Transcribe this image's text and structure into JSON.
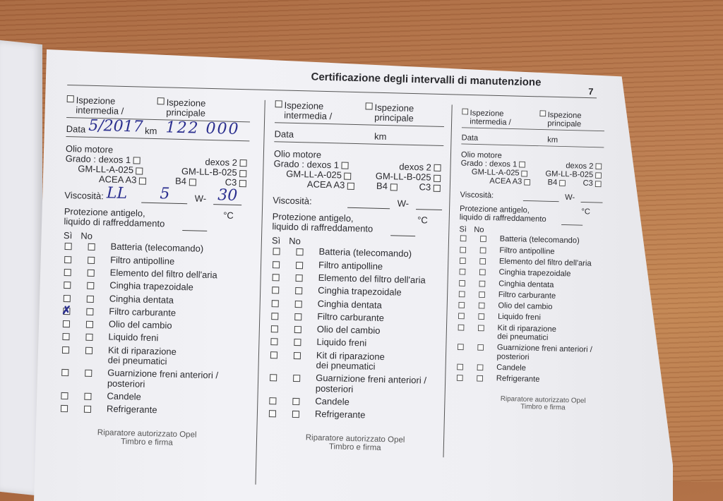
{
  "header": {
    "title": "Certificazione degli intervalli di manutenzione",
    "page_number": "7"
  },
  "form": {
    "inspection_intermediate": "Ispezione intermedia /",
    "inspection_main": "Ispezione principale",
    "date_label": "Data",
    "km_label": "km",
    "oil_label": "Olio motore",
    "grade_label": "Grado :",
    "grades": [
      "dexos 1",
      "dexos 2",
      "GM-LL-A-025",
      "GM-LL-B-025",
      "ACEA A3",
      "B4",
      "C3"
    ],
    "viscosity_label": "Viscosità:",
    "w_label": "W-",
    "antifreeze_label_1": "Protezione antigelo,",
    "antifreeze_label_2": "liquido di raffreddamento",
    "celsius": "°C",
    "yes_label": "Sì",
    "no_label": "No",
    "items": [
      "Batteria (telecomando)",
      "Filtro antipolline",
      "Elemento del filtro dell'aria",
      "Cinghia trapezoidale",
      "Cinghia dentata",
      "Filtro carburante",
      "Olio del cambio",
      "Liquido freni",
      "Kit di riparazione\ndei pneumatici",
      "Guarnizione freni anteriori /\nposteriori",
      "Candele",
      "Refrigerante"
    ],
    "footer_1": "Riparatore autorizzato Opel",
    "footer_2": "Timbro e firma"
  },
  "entries": [
    {
      "date": "5/2017",
      "km": "122 000",
      "viscosity_prefix": "LL",
      "viscosity_cold": "5",
      "viscosity_hot": "30",
      "checked_yes": [
        "Filtro carburante"
      ]
    },
    {
      "date": "",
      "km": "",
      "viscosity_prefix": "",
      "viscosity_cold": "",
      "viscosity_hot": "",
      "checked_yes": []
    },
    {
      "date": "",
      "km": "",
      "viscosity_prefix": "",
      "viscosity_cold": "",
      "viscosity_hot": "",
      "checked_yes": []
    }
  ],
  "colors": {
    "ink": "#2b2f8f",
    "paper": "#f0f0f4",
    "wood": "#b97a4e"
  }
}
